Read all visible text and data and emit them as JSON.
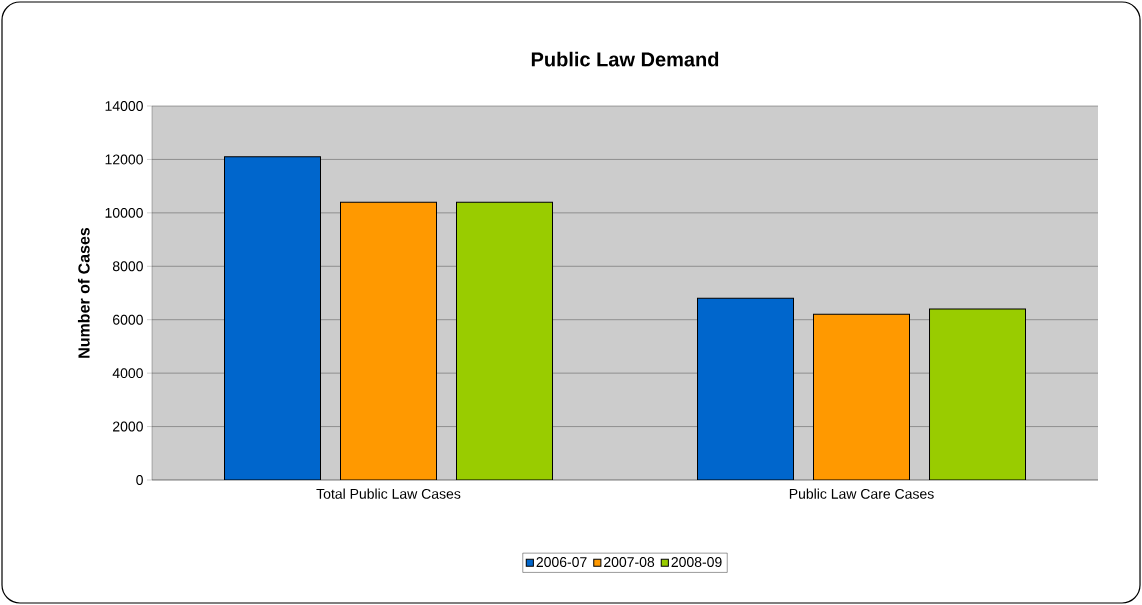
{
  "chart_data": {
    "type": "bar",
    "title": "Public Law Demand",
    "ylabel": "Number of Cases",
    "categories": [
      "Total Public Law  Cases",
      "Public Law  Care Cases"
    ],
    "series": [
      {
        "name": "2006-07",
        "color": "#0066cc",
        "values": [
          12100,
          6800
        ]
      },
      {
        "name": "2007-08",
        "color": "#ff9900",
        "values": [
          10400,
          6200
        ]
      },
      {
        "name": "2008-09",
        "color": "#99cc00",
        "values": [
          10400,
          6400
        ]
      }
    ],
    "ylim": [
      0,
      14000
    ],
    "yticks": [
      0,
      2000,
      4000,
      6000,
      8000,
      10000,
      12000,
      14000
    ],
    "grid": "y",
    "legend": "bottom"
  }
}
